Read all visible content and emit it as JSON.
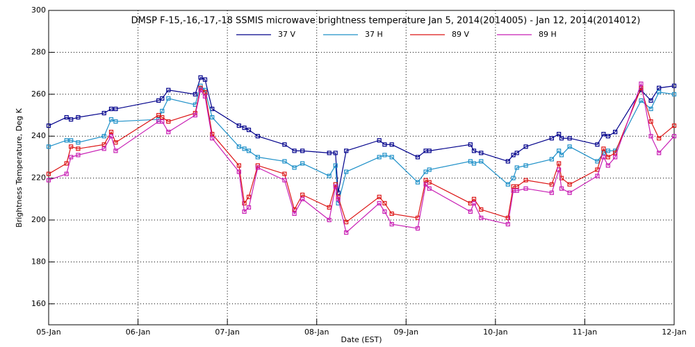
{
  "chart_data": {
    "type": "line",
    "title": "DMSP F-15,-16,-17,-18 SSMIS microwave brightness temperature Jan  5, 2014(2014005) - Jan 12, 2014(2014012)",
    "x_label": "Date (EST)",
    "y_label": "Brightness Temperature, Deg K",
    "x": [
      0,
      0.2,
      0.25,
      0.33,
      0.62,
      0.7,
      0.75,
      1.23,
      1.27,
      1.34,
      1.64,
      1.7,
      1.75,
      1.83,
      2.13,
      2.19,
      2.24,
      2.34,
      2.64,
      2.75,
      2.84,
      3.14,
      3.21,
      3.24,
      3.33,
      3.7,
      3.76,
      3.84,
      4.13,
      4.22,
      4.26,
      4.72,
      4.76,
      4.84,
      5.14,
      5.2,
      5.24,
      5.34,
      5.63,
      5.71,
      5.74,
      5.83,
      6.14,
      6.21,
      6.26,
      6.34,
      6.63,
      6.74,
      6.83,
      7
    ],
    "series": [
      {
        "name": "37 V",
        "color": "#00008b",
        "values": [
          245,
          249,
          248,
          249,
          251,
          253,
          253,
          257,
          258,
          262,
          260,
          268,
          267,
          253,
          245,
          244,
          243,
          240,
          236,
          233,
          233,
          232,
          232,
          213,
          233,
          238,
          236,
          236,
          230,
          233,
          233,
          236,
          233,
          232,
          228,
          231,
          232,
          235,
          239,
          241,
          239,
          239,
          236,
          241,
          240,
          242,
          262,
          257,
          263,
          264
        ]
      },
      {
        "name": "37 H",
        "color": "#1e90c8",
        "values": [
          235,
          238,
          238,
          237,
          240,
          248,
          247,
          248,
          252,
          258,
          255,
          264,
          262,
          249,
          235,
          234,
          233,
          230,
          228,
          225,
          227,
          221,
          226,
          208,
          223,
          230,
          231,
          230,
          218,
          223,
          224,
          228,
          227,
          228,
          217,
          220,
          225,
          226,
          229,
          233,
          231,
          235,
          228,
          232,
          233,
          233,
          257,
          253,
          261,
          260
        ]
      },
      {
        "name": "89 V",
        "color": "#dc1414",
        "values": [
          222,
          227,
          235,
          234,
          236,
          242,
          237,
          250,
          249,
          247,
          251,
          263,
          261,
          241,
          226,
          208,
          211,
          226,
          222,
          205,
          212,
          206,
          217,
          211,
          199,
          211,
          208,
          203,
          201,
          219,
          218,
          208,
          210,
          205,
          201,
          216,
          216,
          219,
          217,
          227,
          220,
          217,
          224,
          234,
          230,
          232,
          263,
          247,
          239,
          245
        ]
      },
      {
        "name": "89 H",
        "color": "#c81eb4",
        "values": [
          219,
          222,
          230,
          231,
          234,
          240,
          233,
          247,
          247,
          242,
          250,
          262,
          259,
          239,
          223,
          204,
          206,
          225,
          219,
          203,
          210,
          200,
          216,
          210,
          194,
          208,
          204,
          198,
          196,
          217,
          215,
          204,
          208,
          201,
          198,
          214,
          214,
          215,
          213,
          224,
          215,
          213,
          221,
          230,
          226,
          230,
          265,
          240,
          232,
          240
        ]
      }
    ],
    "xlim": [
      0,
      7
    ],
    "xticks": [
      {
        "value": 0,
        "label": "05-Jan"
      },
      {
        "value": 1,
        "label": "06-Jan"
      },
      {
        "value": 2,
        "label": "07-Jan"
      },
      {
        "value": 3,
        "label": "08-Jan"
      },
      {
        "value": 4,
        "label": "09-Jan"
      },
      {
        "value": 5,
        "label": "10-Jan"
      },
      {
        "value": 6,
        "label": "11-Jan"
      },
      {
        "value": 7,
        "label": "12-Jan"
      }
    ],
    "ylim": [
      150,
      300
    ],
    "yticks": [
      160,
      180,
      200,
      220,
      240,
      260,
      280,
      300
    ],
    "grid": true
  }
}
